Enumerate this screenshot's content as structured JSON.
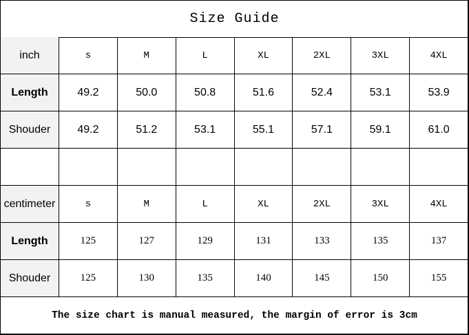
{
  "title": "Size Guide",
  "sizes": [
    "s",
    "M",
    "L",
    "XL",
    "2XL",
    "3XL",
    "4XL"
  ],
  "inch": {
    "unit_label": "inch",
    "rows": [
      {
        "label": "Length",
        "values": [
          "49.2",
          "50.0",
          "50.8",
          "51.6",
          "52.4",
          "53.1",
          "53.9"
        ]
      },
      {
        "label": "Shouder",
        "values": [
          "49.2",
          "51.2",
          "53.1",
          "55.1",
          "57.1",
          "59.1",
          "61.0"
        ]
      }
    ]
  },
  "centimeter": {
    "unit_label": "centimeter",
    "rows": [
      {
        "label": "Length",
        "values": [
          "125",
          "127",
          "129",
          "131",
          "133",
          "135",
          "137"
        ]
      },
      {
        "label": "Shouder",
        "values": [
          "125",
          "130",
          "135",
          "140",
          "145",
          "150",
          "155"
        ]
      }
    ]
  },
  "footer": "The size chart is manual measured, the margin of error is 3cm",
  "colors": {
    "label_bg": "#f2f2f2",
    "border": "#000000"
  }
}
